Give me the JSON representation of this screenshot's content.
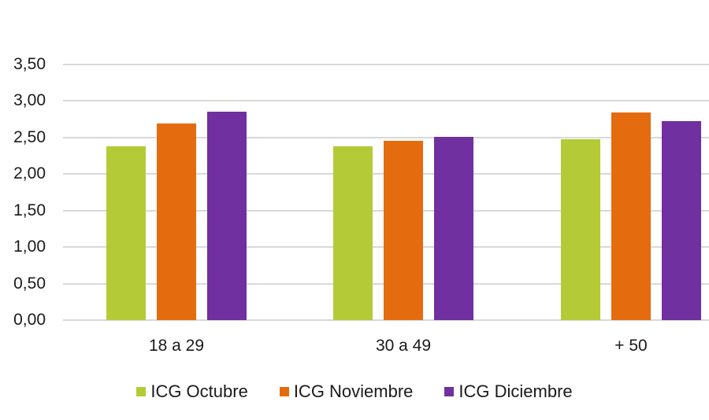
{
  "chart_data": {
    "type": "bar",
    "title": "",
    "xlabel": "",
    "ylabel": "",
    "ylim": [
      0,
      3.5
    ],
    "yticks": [
      "0,00",
      "0,50",
      "1,00",
      "1,50",
      "2,00",
      "2,50",
      "3,00",
      "3,50"
    ],
    "grid": true,
    "legend_position": "bottom",
    "categories": [
      "18 a 29",
      "30 a 49",
      "+ 50"
    ],
    "series": [
      {
        "name": "ICG Octubre",
        "color": "#b4cb37",
        "values": [
          2.38,
          2.38,
          2.48
        ]
      },
      {
        "name": "ICG Noviembre",
        "color": "#e46c0f",
        "values": [
          2.69,
          2.46,
          2.84
        ]
      },
      {
        "name": "ICG Diciembre",
        "color": "#7030a0",
        "values": [
          2.85,
          2.51,
          2.73
        ]
      }
    ]
  }
}
